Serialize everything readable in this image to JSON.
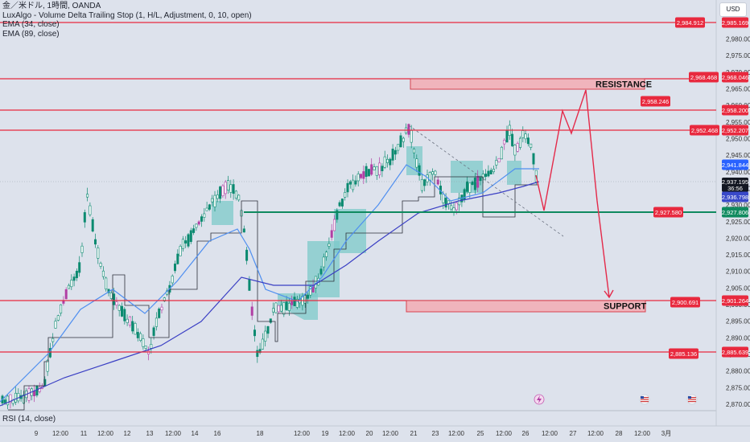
{
  "legend": {
    "symbol": "金／米ドル, 1時間, OANDA",
    "indicator1": "LuxAlgo - Volume Delta Trailing Stop (1, H/L, Adjustment, 0, 10, open)",
    "indicator2": "EMA (34, close)",
    "indicator3": "EMA (89, close)"
  },
  "rsi_label": "RSI (14, close)",
  "currency_button": "USD",
  "price_axis": {
    "ticks": [
      "2,980.000",
      "2,975.000",
      "2,970.000",
      "2,965.000",
      "2,960.000",
      "2,955.000",
      "2,950.000",
      "2,945.000",
      "2,940.000",
      "2,935.000",
      "2,930.000",
      "2,925.000",
      "2,920.000",
      "2,915.000",
      "2,910.000",
      "2,905.000",
      "2,900.000",
      "2,895.000",
      "2,890.000",
      "2,885.000",
      "2,880.000",
      "2,875.000",
      "2,870.000"
    ],
    "current_price": "2,937.195",
    "countdown": "36:56"
  },
  "time_axis": [
    "9",
    "12:00",
    "11",
    "12:00",
    "12",
    "13",
    "12:00",
    "14",
    "16",
    "18",
    "12:00",
    "19",
    "12:00",
    "20",
    "12:00",
    "21",
    "23",
    "12:00",
    "25",
    "12:00",
    "26",
    "12:00",
    "27",
    "12:00",
    "28",
    "12:00",
    "3月"
  ],
  "levels": {
    "l2984": "2,984.912",
    "l2985": "2,985.169",
    "l2968a": "2,968.468",
    "l2968b": "2,968.046",
    "l2958a": "2,958.246",
    "l2958b": "2,958.200",
    "l2952a": "2,952.468",
    "l2952b": "2,952.207",
    "ema34": "2,941.844",
    "ema89": "2,936.798",
    "green": "2,927.580",
    "greenb": "2,927.806",
    "l2900a": "2,900.691",
    "l2900b": "2,901.264",
    "l2885a": "2,885.136",
    "l2885b": "2,885.639"
  },
  "zones": {
    "resistance": "RESISTANCE",
    "support": "SUPPORT"
  },
  "colors": {
    "background": "#dde2ec",
    "level_red": "#e8293e",
    "level_green": "#0f8a5f",
    "candle": "#0b8a70",
    "candle_pink": "#b13ea4",
    "ema34": "#4f8ff0",
    "ema89": "#3a3fc4",
    "band": "#7cc9c9",
    "zone_fill": "#f0b4bc",
    "arrow": "#e42a4a",
    "price_tag": "#e8293e",
    "ema34_tag": "#2962ff",
    "ema89_tag": "#3949c9",
    "current_tag": "#131722"
  },
  "icons": {
    "flash": "lightning-icon",
    "flag1": "us-flag-icon",
    "flag2": "us-flag-icon"
  }
}
